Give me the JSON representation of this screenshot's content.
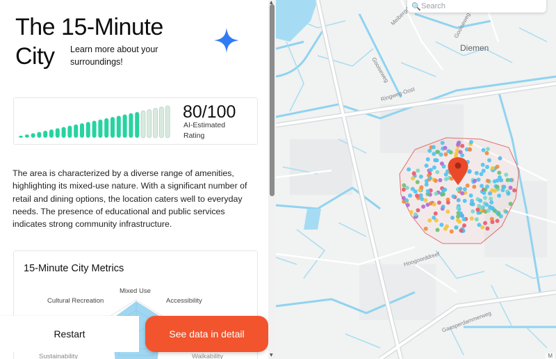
{
  "header": {
    "title_line1": "The 15-Minute",
    "title_line2": "City",
    "subtitle": "Learn more about your surroundings!",
    "accent_color": "#2f7cf6"
  },
  "score": {
    "value_text": "80/100",
    "label": "AI-Estimated Rating",
    "value": 80,
    "max": 100,
    "total_bars": 25,
    "filled_color": "#27d3a0",
    "empty_color": "#d8eadf"
  },
  "description": "The area is characterized by a diverse range of amenities, highlighting its mixed-use nature. With a significant number of retail and dining options, the location caters well to everyday needs. The presence of educational and public services indicates strong community infrastructure.",
  "metrics": {
    "title": "15-Minute City Metrics",
    "axes": [
      "Mixed Use",
      "Accessibility",
      "Walkability",
      "Sustainability",
      "Cultural Recreation"
    ]
  },
  "actions": {
    "restart_label": "Restart",
    "detail_label": "See data in detail",
    "detail_color": "#f2542d"
  },
  "map": {
    "search_placeholder": "Search",
    "place_label": "Diemen",
    "streets": [
      "Meibergdreef",
      "Gooiseweg",
      "Ringweg-Oost",
      "Hoogoorddreef",
      "Gaasperdammerweg",
      "Gooiseweg"
    ],
    "attribution": "M"
  }
}
